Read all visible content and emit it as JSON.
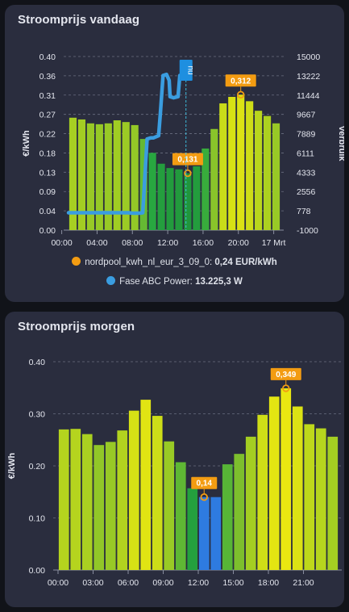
{
  "cards": [
    {
      "title": "Stroomprijs vandaag",
      "legend": [
        {
          "name": "nordpool_kwh_nl_eur_3_09_0:",
          "value": "0,24 EUR/kWh",
          "color": "#f39c12"
        },
        {
          "name": "Fase ABC Power:",
          "value": "13.225,3 W",
          "color": "#3a9de0"
        }
      ]
    },
    {
      "title": "Stroomprijs morgen"
    }
  ],
  "chart_data": [
    {
      "type": "bar",
      "title": "Stroomprijs vandaag",
      "ylabel": "€/kWh",
      "y2label": "Verbruik",
      "ylim": [
        0,
        0.4
      ],
      "y2lim": [
        -1000,
        15000
      ],
      "ytick_labels": [
        "0.00",
        "0.04",
        "0.09",
        "0.13",
        "0.18",
        "0.22",
        "0.27",
        "0.31",
        "0.36",
        "0.40"
      ],
      "y2tick_labels": [
        "-1000",
        "778",
        "2556",
        "4333",
        "6111",
        "7889",
        "9667",
        "11444",
        "13222",
        "15000"
      ],
      "xtick_labels": [
        "00:00",
        "04:00",
        "08:00",
        "12:00",
        "16:00",
        "20:00",
        "17 Mrt"
      ],
      "grid": "horizontal dashed",
      "legend_position": "bottom",
      "series": [
        {
          "name": "nordpool_kwh_nl_eur_3_09_0",
          "values": [
            0.259,
            0.255,
            0.246,
            0.244,
            0.246,
            0.253,
            0.249,
            0.242,
            0.21,
            0.178,
            0.153,
            0.143,
            0.14,
            0.131,
            0.147,
            0.188,
            0.233,
            0.292,
            0.307,
            0.312,
            0.297,
            0.275,
            0.263,
            0.246
          ]
        },
        {
          "name": "Fase ABC Power",
          "type": "line",
          "x": [
            0,
            6.8,
            7.2,
            8.0,
            8.4,
            8.9,
            9.3,
            9.6,
            10.2,
            10.4,
            10.7,
            11.1,
            11.4,
            11.5,
            11.9,
            12.4,
            12.6,
            13.0,
            13.3
          ],
          "values": [
            600,
            600,
            560,
            560,
            600,
            7400,
            7500,
            7500,
            7700,
            9800,
            13250,
            13350,
            12800,
            11300,
            11200,
            11300,
            13250,
            13300,
            13225
          ]
        }
      ],
      "annotations": [
        {
          "label": "0,312",
          "x": 19.5,
          "y": 0.312
        },
        {
          "label": "0,131",
          "x": 13.5,
          "y": 0.131
        },
        {
          "label": "nu",
          "x": 13.3
        }
      ]
    },
    {
      "type": "bar",
      "title": "Stroomprijs morgen",
      "ylabel": "€/kWh",
      "ylim": [
        0,
        0.4
      ],
      "ytick_labels": [
        "0.00",
        "0.10",
        "0.20",
        "0.30",
        "0.40"
      ],
      "xtick_labels": [
        "00:00",
        "03:00",
        "06:00",
        "09:00",
        "12:00",
        "15:00",
        "18:00",
        "21:00"
      ],
      "grid": "horizontal dashed",
      "values": [
        0.27,
        0.271,
        0.261,
        0.24,
        0.246,
        0.268,
        0.306,
        0.327,
        0.296,
        0.247,
        0.207,
        0.157,
        0.14,
        0.14,
        0.203,
        0.223,
        0.256,
        0.298,
        0.333,
        0.349,
        0.314,
        0.28,
        0.272,
        0.256
      ],
      "annotations": [
        {
          "label": "0,349",
          "x": 19.5,
          "y": 0.349
        },
        {
          "label": "0,14",
          "x": 12.5,
          "y": 0.14
        }
      ]
    }
  ]
}
